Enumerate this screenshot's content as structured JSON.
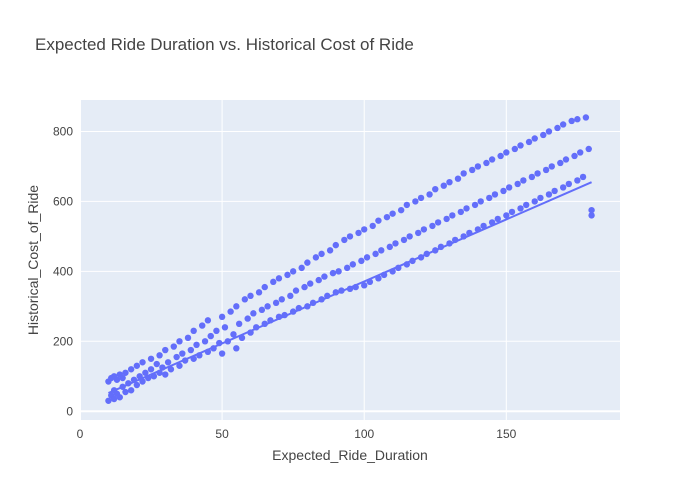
{
  "chart_data": {
    "type": "scatter",
    "title": "Expected Ride Duration vs. Historical Cost of Ride",
    "xlabel": "Expected_Ride_Duration",
    "ylabel": "Historical_Cost_of_Ride",
    "xlim": [
      0,
      190
    ],
    "ylim": [
      -25,
      890
    ],
    "x_ticks": [
      0,
      50,
      100,
      150
    ],
    "y_ticks": [
      0,
      200,
      400,
      600,
      800
    ],
    "grid": true,
    "legend": "none",
    "colors": {
      "marker": "#636efa",
      "plot_bg": "#e5ecf6",
      "trendline": "#636efa"
    },
    "trendline": {
      "x": [
        10,
        180
      ],
      "y": [
        52,
        655
      ]
    },
    "series": [
      {
        "x": [
          10,
          10,
          11,
          11,
          12,
          12,
          12,
          13,
          13,
          14,
          14,
          15,
          15,
          16,
          16,
          17,
          18,
          18,
          19,
          20,
          20,
          21,
          22,
          22,
          23,
          24,
          25,
          25,
          26,
          27,
          28,
          28,
          29,
          30,
          30,
          31,
          32,
          33,
          34,
          35,
          35,
          36,
          37,
          38,
          39,
          40,
          40,
          41,
          42,
          43,
          44,
          45,
          45,
          46,
          47,
          48,
          49,
          50,
          50,
          51,
          52,
          53,
          54,
          55,
          55,
          56,
          57,
          58,
          59,
          60,
          60,
          61,
          62,
          63,
          64,
          65,
          65,
          66,
          67,
          68,
          69,
          70,
          70,
          71,
          72,
          73,
          74,
          75,
          75,
          76,
          77,
          78,
          79,
          80,
          80,
          81,
          82,
          83,
          84,
          85,
          85,
          86,
          87,
          88,
          89,
          90,
          90,
          91,
          92,
          93,
          94,
          95,
          95,
          96,
          97,
          98,
          99,
          100,
          100,
          101,
          102,
          103,
          104,
          105,
          105,
          106,
          107,
          108,
          109,
          110,
          110,
          111,
          112,
          113,
          114,
          115,
          115,
          116,
          117,
          118,
          119,
          120,
          120,
          121,
          122,
          123,
          124,
          125,
          125,
          126,
          127,
          128,
          129,
          130,
          130,
          131,
          132,
          133,
          134,
          135,
          135,
          136,
          137,
          138,
          139,
          140,
          140,
          141,
          142,
          143,
          144,
          145,
          145,
          146,
          147,
          148,
          149,
          150,
          150,
          151,
          152,
          153,
          154,
          155,
          155,
          156,
          157,
          158,
          159,
          160,
          160,
          161,
          162,
          163,
          164,
          165,
          165,
          166,
          167,
          168,
          169,
          170,
          170,
          171,
          172,
          173,
          174,
          175,
          175,
          176,
          177,
          178,
          179,
          180,
          180
        ],
        "y": [
          30,
          85,
          45,
          95,
          35,
          60,
          100,
          50,
          90,
          40,
          105,
          70,
          95,
          55,
          110,
          80,
          60,
          120,
          90,
          75,
          130,
          100,
          85,
          140,
          110,
          95,
          120,
          150,
          100,
          135,
          110,
          160,
          125,
          105,
          175,
          140,
          120,
          185,
          155,
          130,
          200,
          165,
          145,
          210,
          175,
          150,
          230,
          190,
          160,
          245,
          200,
          170,
          260,
          215,
          180,
          230,
          195,
          165,
          270,
          240,
          200,
          285,
          220,
          180,
          300,
          250,
          210,
          320,
          265,
          225,
          330,
          280,
          240,
          340,
          290,
          250,
          355,
          300,
          260,
          370,
          310,
          270,
          380,
          320,
          275,
          390,
          330,
          285,
          400,
          345,
          295,
          410,
          355,
          300,
          425,
          365,
          310,
          440,
          375,
          320,
          450,
          385,
          330,
          460,
          395,
          340,
          475,
          400,
          345,
          490,
          410,
          350,
          500,
          420,
          355,
          510,
          430,
          360,
          520,
          440,
          370,
          530,
          450,
          380,
          545,
          460,
          390,
          555,
          470,
          400,
          565,
          480,
          410,
          575,
          490,
          420,
          590,
          500,
          430,
          600,
          510,
          440,
          610,
          520,
          450,
          620,
          530,
          460,
          635,
          540,
          470,
          645,
          550,
          480,
          655,
          560,
          490,
          665,
          570,
          500,
          680,
          580,
          510,
          690,
          590,
          520,
          700,
          600,
          530,
          710,
          610,
          540,
          720,
          620,
          550,
          730,
          630,
          560,
          740,
          640,
          570,
          750,
          650,
          580,
          760,
          660,
          590,
          770,
          670,
          600,
          780,
          680,
          610,
          790,
          690,
          620,
          800,
          700,
          630,
          810,
          710,
          640,
          820,
          720,
          650,
          830,
          730,
          660,
          835,
          740,
          670,
          840,
          750,
          560,
          575
        ]
      }
    ]
  }
}
